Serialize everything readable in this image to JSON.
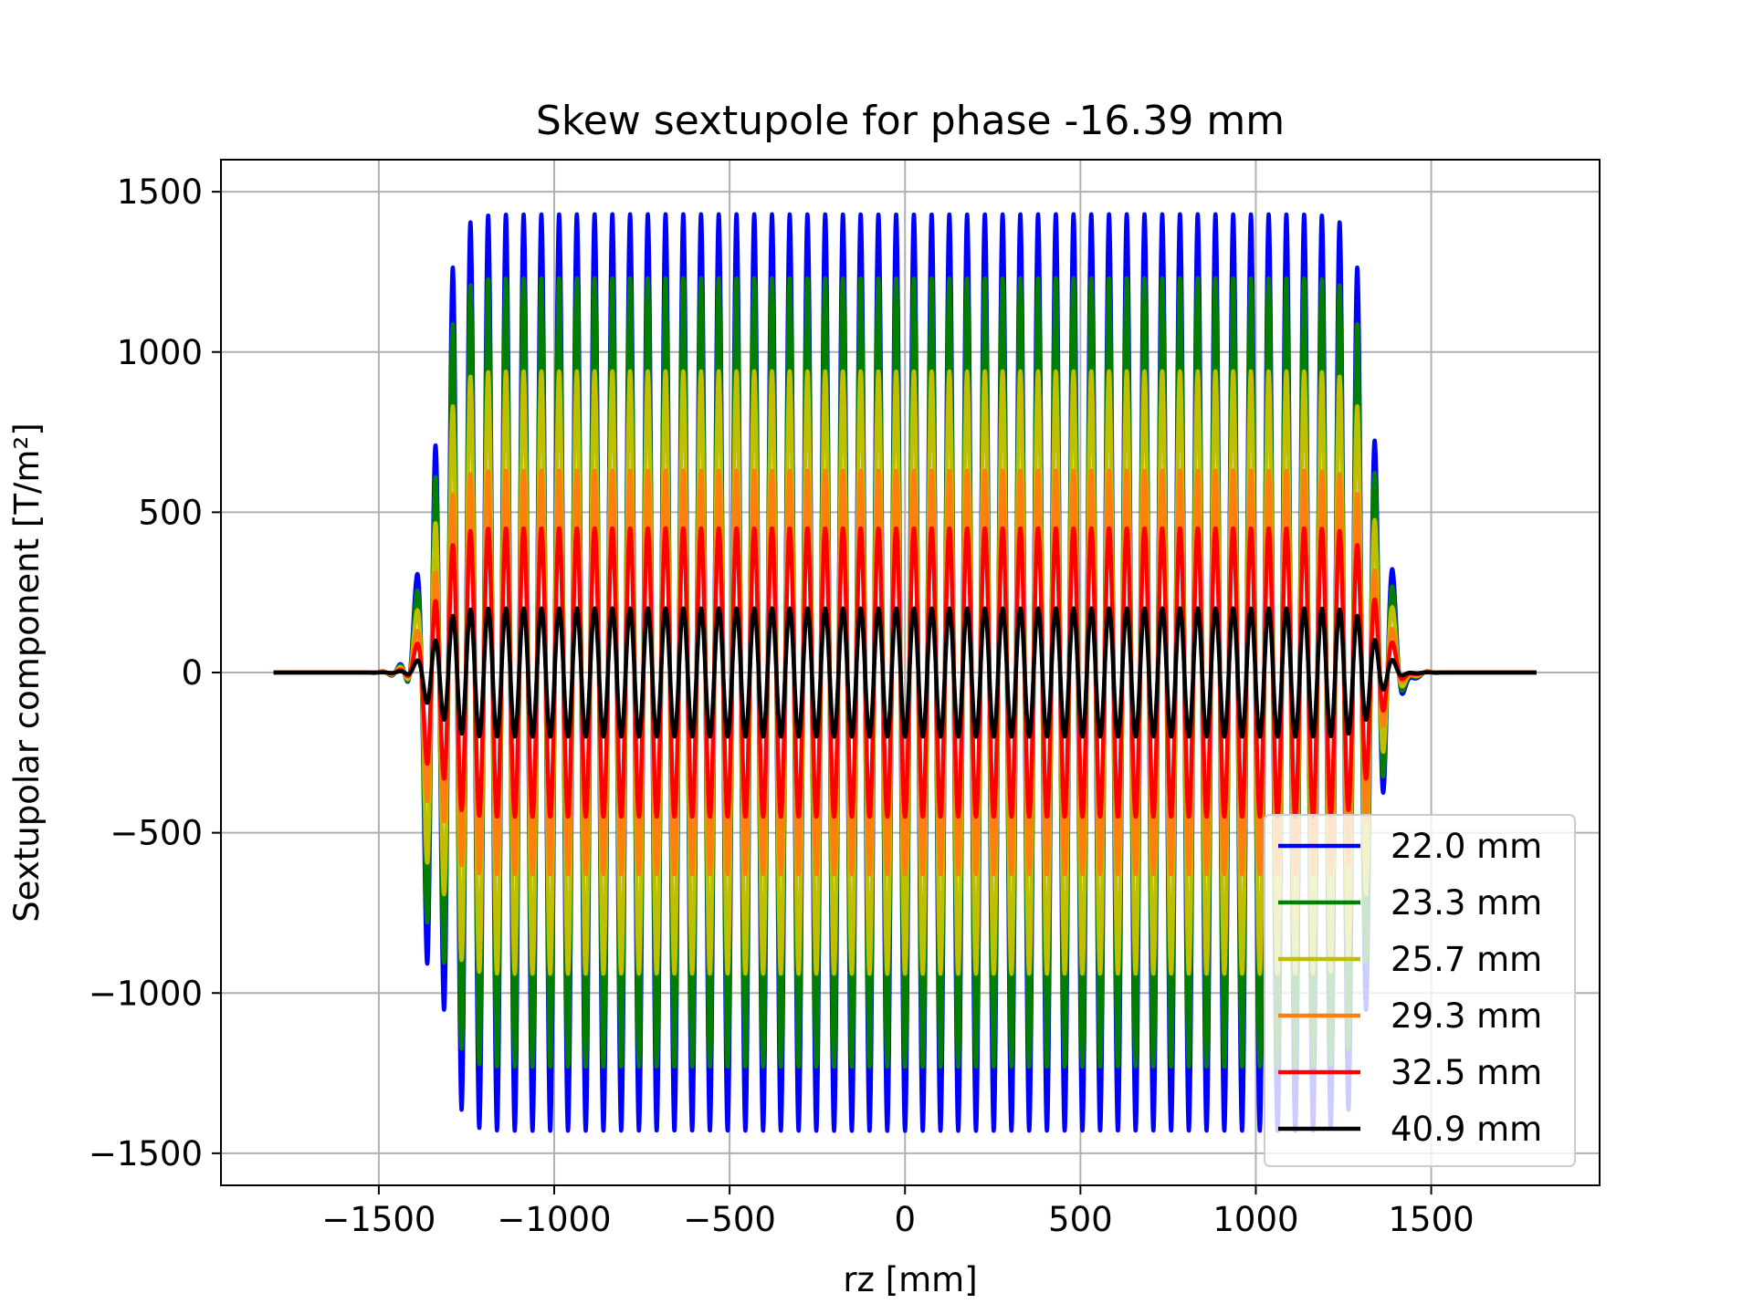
{
  "chart_data": {
    "type": "line",
    "title": "Skew sextupole for phase -16.39 mm",
    "xlabel": "rz [mm]",
    "ylabel": "Sextupolar component [T/m²]",
    "xlim": [
      -1950,
      1980
    ],
    "ylim": [
      -1600,
      1600
    ],
    "xticks": [
      -1500,
      -1000,
      -500,
      0,
      500,
      1000,
      1500
    ],
    "xtick_labels": [
      "−1500",
      "−1000",
      "−500",
      "0",
      "500",
      "1000",
      "1500"
    ],
    "yticks": [
      -1500,
      -1000,
      -500,
      0,
      500,
      1000,
      1500
    ],
    "ytick_labels": [
      "−1500",
      "−1000",
      "−500",
      "0",
      "500",
      "1000",
      "1500"
    ],
    "grid": true,
    "legend_position": "lower-right",
    "x_range": [
      -1800,
      1800
    ],
    "body_range": [
      -1340,
      1340
    ],
    "periods": 53,
    "series": [
      {
        "name": "22.0 mm",
        "color": "#0000ff",
        "amplitude": 1430,
        "entry_peak": 150,
        "entry_dip": -770
      },
      {
        "name": "23.3 mm",
        "color": "#008000",
        "amplitude": 1230,
        "entry_peak": 120,
        "entry_dip": -660
      },
      {
        "name": "25.7 mm",
        "color": "#bfbf00",
        "amplitude": 940,
        "entry_peak": 90,
        "entry_dip": -500
      },
      {
        "name": "29.3 mm",
        "color": "#ff7f0e",
        "amplitude": 630,
        "entry_peak": 60,
        "entry_dip": -340
      },
      {
        "name": "32.5 mm",
        "color": "#ff0000",
        "amplitude": 450,
        "entry_peak": 40,
        "entry_dip": -240
      },
      {
        "name": "40.9 mm",
        "color": "#000000",
        "amplitude": 200,
        "entry_peak": 15,
        "entry_dip": -60
      }
    ]
  }
}
